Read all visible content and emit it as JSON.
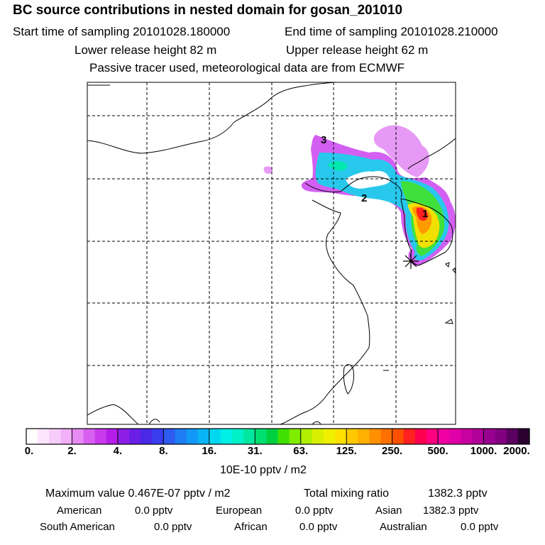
{
  "header": {
    "title": "BC  source contributions in nested domain for gosan_201010",
    "start_time": "Start time of sampling 20101028.180000",
    "end_time": "End time of sampling 20101028.210000",
    "lower_release": "Lower release height   82 m",
    "upper_release": "Upper release height   62 m",
    "tracer_note": "Passive tracer used, meteorological data are from ECMWF"
  },
  "map": {
    "labels": [
      {
        "id": "1",
        "text": "1"
      },
      {
        "id": "2",
        "text": "2"
      },
      {
        "id": "3",
        "text": "3"
      }
    ]
  },
  "colorbar": {
    "ticks": [
      "0.",
      "2.",
      "4.",
      "8.",
      "16.",
      "31.",
      "63.",
      "125.",
      "250.",
      "500.",
      "1000.",
      "2000."
    ],
    "colors": [
      "#ffffff",
      "#fbe6fd",
      "#f6ccfb",
      "#f1b0f8",
      "#e78af4",
      "#d860f0",
      "#c93aec",
      "#b61de8",
      "#8c1ee6",
      "#6a1ee6",
      "#4a28e8",
      "#3a3cf0",
      "#2e5cf2",
      "#1e7cf4",
      "#1298f6",
      "#0ab4f6",
      "#00d8f0",
      "#00f0e6",
      "#00f0c8",
      "#00e8a0",
      "#00e070",
      "#00d040",
      "#40e000",
      "#80ec00",
      "#b0f000",
      "#d8f000",
      "#f0f000",
      "#ffe000",
      "#ffc800",
      "#ffb000",
      "#ff9000",
      "#ff7000",
      "#ff5000",
      "#ff2020",
      "#ff0050",
      "#ff0080",
      "#f000a0",
      "#e000a8",
      "#c800a0",
      "#b00098",
      "#980090",
      "#800080",
      "#5a0060",
      "#2a0030"
    ],
    "unit": "10E-10 pptv / m2"
  },
  "stats": {
    "max_value": "Maximum value  0.467E-07 pptv / m2",
    "total_label": "Total mixing ratio",
    "total_value": "1382.3 pptv",
    "regions": [
      {
        "name": "American",
        "value": "0.0 pptv"
      },
      {
        "name": "European",
        "value": "0.0 pptv"
      },
      {
        "name": "Asian",
        "value": "1382.3 pptv"
      },
      {
        "name": "South American",
        "value": "0.0 pptv"
      },
      {
        "name": "African",
        "value": "0.0 pptv"
      },
      {
        "name": "Australian",
        "value": "0.0 pptv"
      }
    ]
  }
}
